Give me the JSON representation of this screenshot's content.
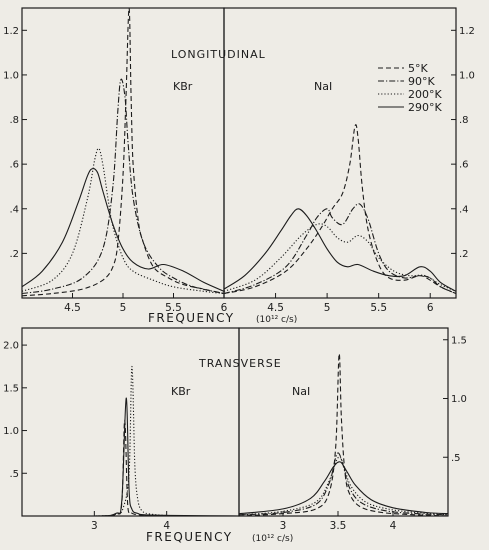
{
  "chart_data": [
    {
      "type": "line",
      "section_label": "LONGITUDINAL",
      "xlabel": "FREQUENCY",
      "xunit": "(10¹² c/s)",
      "legend": {
        "placement": "top-right",
        "entries": [
          "5°K",
          "90°K",
          "200°K",
          "290°K"
        ],
        "styles": [
          "dashed",
          "dash-dot",
          "dotted",
          "solid"
        ]
      },
      "panels": [
        {
          "name": "KBr",
          "xlim": [
            4.0,
            6.0
          ],
          "ylim": [
            0,
            1.3
          ],
          "xticks": [
            "4.5",
            "5",
            "5.5",
            "6"
          ],
          "yticks": [
            ".2",
            ".4",
            ".6",
            ".8",
            "1.0",
            "1.2"
          ],
          "yaxis_side": "left",
          "series": [
            {
              "name": "5°K",
              "style": "dashed",
              "x": [
                4.0,
                4.3,
                4.6,
                4.8,
                4.9,
                4.95,
                5.0,
                5.03,
                5.06,
                5.08,
                5.1,
                5.15,
                5.2,
                5.3,
                5.45,
                5.6,
                5.8,
                6.0
              ],
              "y": [
                0.01,
                0.02,
                0.04,
                0.08,
                0.14,
                0.25,
                0.55,
                0.9,
                1.3,
                0.9,
                0.6,
                0.35,
                0.25,
                0.14,
                0.09,
                0.06,
                0.04,
                0.02
              ]
            },
            {
              "name": "90°K",
              "style": "dash-dot",
              "x": [
                4.0,
                4.3,
                4.6,
                4.8,
                4.9,
                4.95,
                4.98,
                5.02,
                5.05,
                5.1,
                5.2,
                5.35,
                5.5,
                5.7,
                6.0
              ],
              "y": [
                0.02,
                0.04,
                0.09,
                0.22,
                0.5,
                0.85,
                0.98,
                0.9,
                0.7,
                0.45,
                0.25,
                0.14,
                0.09,
                0.05,
                0.02
              ]
            },
            {
              "name": "200°K",
              "style": "dotted",
              "x": [
                4.0,
                4.3,
                4.5,
                4.65,
                4.72,
                4.76,
                4.8,
                4.85,
                4.9,
                5.0,
                5.1,
                5.3,
                5.5,
                5.8,
                6.0
              ],
              "y": [
                0.03,
                0.08,
                0.2,
                0.45,
                0.62,
                0.67,
                0.6,
                0.45,
                0.32,
                0.18,
                0.12,
                0.08,
                0.05,
                0.03,
                0.02
              ]
            },
            {
              "name": "290°K",
              "style": "solid",
              "x": [
                4.0,
                4.2,
                4.4,
                4.55,
                4.65,
                4.7,
                4.75,
                4.8,
                4.9,
                5.0,
                5.1,
                5.25,
                5.4,
                5.6,
                5.8,
                6.0
              ],
              "y": [
                0.05,
                0.12,
                0.25,
                0.42,
                0.55,
                0.58,
                0.56,
                0.48,
                0.33,
                0.22,
                0.16,
                0.13,
                0.15,
                0.12,
                0.07,
                0.03
              ]
            }
          ]
        },
        {
          "name": "NaI",
          "xlim": [
            4.0,
            6.25
          ],
          "ylim": [
            0,
            1.3
          ],
          "xticks": [
            "4.5",
            "5",
            "5.5",
            "6"
          ],
          "yticks": [
            ".2",
            ".4",
            ".6",
            ".8",
            "1.0",
            "1.2"
          ],
          "yaxis_side": "right",
          "series": [
            {
              "name": "5°K",
              "style": "dashed",
              "x": [
                4.0,
                4.3,
                4.6,
                4.8,
                4.95,
                5.05,
                5.15,
                5.22,
                5.27,
                5.3,
                5.34,
                5.4,
                5.5,
                5.6,
                5.75,
                5.9,
                6.0,
                6.1,
                6.25
              ],
              "y": [
                0.02,
                0.05,
                0.12,
                0.22,
                0.32,
                0.4,
                0.47,
                0.6,
                0.77,
                0.72,
                0.5,
                0.3,
                0.15,
                0.09,
                0.08,
                0.1,
                0.08,
                0.05,
                0.02
              ]
            },
            {
              "name": "90°K",
              "style": "dash-dot",
              "x": [
                4.0,
                4.3,
                4.6,
                4.8,
                4.9,
                5.0,
                5.05,
                5.15,
                5.25,
                5.32,
                5.4,
                5.5,
                5.6,
                5.75,
                5.9,
                6.0,
                6.1,
                6.25
              ],
              "y": [
                0.02,
                0.06,
                0.14,
                0.28,
                0.36,
                0.4,
                0.36,
                0.33,
                0.4,
                0.42,
                0.35,
                0.2,
                0.12,
                0.09,
                0.1,
                0.09,
                0.05,
                0.02
              ]
            },
            {
              "name": "200°K",
              "style": "dotted",
              "x": [
                4.0,
                4.3,
                4.55,
                4.75,
                4.9,
                5.0,
                5.1,
                5.2,
                5.3,
                5.4,
                5.5,
                5.65,
                5.8,
                5.95,
                6.1,
                6.25
              ],
              "y": [
                0.03,
                0.08,
                0.18,
                0.28,
                0.33,
                0.32,
                0.27,
                0.25,
                0.28,
                0.25,
                0.18,
                0.12,
                0.1,
                0.1,
                0.06,
                0.03
              ]
            },
            {
              "name": "290°K",
              "style": "solid",
              "x": [
                4.0,
                4.2,
                4.4,
                4.55,
                4.65,
                4.72,
                4.8,
                4.9,
                5.0,
                5.1,
                5.2,
                5.3,
                5.45,
                5.6,
                5.75,
                5.9,
                6.0,
                6.1,
                6.25
              ],
              "y": [
                0.04,
                0.1,
                0.2,
                0.3,
                0.37,
                0.4,
                0.37,
                0.3,
                0.22,
                0.16,
                0.14,
                0.15,
                0.12,
                0.1,
                0.1,
                0.14,
                0.12,
                0.07,
                0.03
              ]
            }
          ]
        }
      ]
    },
    {
      "type": "line",
      "section_label": "TRANSVERSE",
      "xlabel": "FREQUENCY",
      "xunit": "(10¹² c/s)",
      "panels": [
        {
          "name": "KBr",
          "xlim": [
            2.0,
            5.0
          ],
          "ylim": [
            0,
            2.2
          ],
          "xticks": [
            "3",
            "4"
          ],
          "yticks": [
            ".5",
            "1.0",
            "1.5",
            "2.0"
          ],
          "yaxis_side": "left",
          "series": [
            {
              "name": "5°K",
              "style": "dashed",
              "x": [
                2.0,
                3.0,
                3.3,
                3.38,
                3.42,
                3.46,
                3.5,
                3.56,
                3.7,
                4.0,
                5.0
              ],
              "y": [
                0,
                0,
                0.02,
                0.15,
                1.12,
                0.15,
                0.05,
                0.02,
                0.01,
                0,
                0
              ]
            },
            {
              "name": "200°K",
              "style": "dotted",
              "x": [
                2.0,
                3.0,
                3.3,
                3.4,
                3.48,
                3.52,
                3.56,
                3.6,
                3.66,
                3.8,
                4.2,
                5.0
              ],
              "y": [
                0,
                0,
                0.02,
                0.1,
                0.5,
                1.75,
                0.6,
                0.2,
                0.06,
                0.02,
                0,
                0
              ]
            },
            {
              "name": "290°K",
              "style": "solid",
              "x": [
                2.0,
                3.0,
                3.3,
                3.38,
                3.44,
                3.48,
                3.52,
                3.6,
                3.8,
                5.0
              ],
              "y": [
                0,
                0,
                0.03,
                0.18,
                1.38,
                0.3,
                0.08,
                0.03,
                0.01,
                0
              ]
            }
          ]
        },
        {
          "name": "NaI",
          "xlim": [
            2.6,
            4.5
          ],
          "ylim": [
            0,
            1.6
          ],
          "xticks": [
            "3",
            "3.5",
            "4"
          ],
          "yticks": [
            ".5",
            "1.0",
            "1.5"
          ],
          "yaxis_side": "right",
          "series": [
            {
              "name": "5°K",
              "style": "dashed",
              "x": [
                2.6,
                3.0,
                3.3,
                3.42,
                3.48,
                3.51,
                3.53,
                3.56,
                3.6,
                3.7,
                3.9,
                4.2,
                4.5
              ],
              "y": [
                0,
                0.02,
                0.06,
                0.2,
                0.6,
                1.38,
                0.85,
                0.4,
                0.2,
                0.08,
                0.03,
                0.01,
                0
              ]
            },
            {
              "name": "90°K",
              "style": "dash-dot",
              "x": [
                2.6,
                3.0,
                3.3,
                3.42,
                3.48,
                3.51,
                3.55,
                3.6,
                3.7,
                3.9,
                4.2,
                4.5
              ],
              "y": [
                0.01,
                0.03,
                0.1,
                0.28,
                0.5,
                0.53,
                0.42,
                0.25,
                0.12,
                0.05,
                0.02,
                0.01
              ]
            },
            {
              "name": "200°K",
              "style": "dotted",
              "x": [
                2.6,
                3.0,
                3.3,
                3.42,
                3.48,
                3.52,
                3.56,
                3.62,
                3.75,
                3.95,
                4.2,
                4.5
              ],
              "y": [
                0.01,
                0.04,
                0.12,
                0.3,
                0.46,
                0.5,
                0.4,
                0.25,
                0.12,
                0.06,
                0.03,
                0.01
              ]
            },
            {
              "name": "290°K",
              "style": "solid",
              "x": [
                2.6,
                3.0,
                3.25,
                3.38,
                3.46,
                3.52,
                3.58,
                3.66,
                3.8,
                4.0,
                4.3,
                4.5
              ],
              "y": [
                0.02,
                0.06,
                0.15,
                0.3,
                0.42,
                0.46,
                0.38,
                0.26,
                0.14,
                0.07,
                0.03,
                0.02
              ]
            }
          ]
        }
      ]
    }
  ]
}
